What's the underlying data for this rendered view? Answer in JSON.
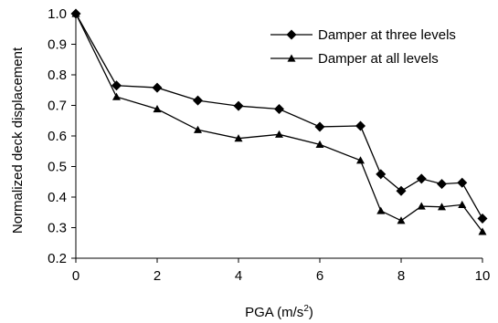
{
  "chart_data": {
    "type": "line",
    "xlabel": "PGA (m/s",
    "xlabel_sup": "2",
    "xlabel_suffix": ")",
    "ylabel": "Normalized deck displacement",
    "xlim": [
      0,
      10
    ],
    "ylim": [
      0.2,
      1.0
    ],
    "xticks": [
      "0",
      "2",
      "4",
      "6",
      "8",
      "10"
    ],
    "yticks": [
      "0.2",
      "0.3",
      "0.4",
      "0.5",
      "0.6",
      "0.7",
      "0.8",
      "0.9",
      "1.0"
    ],
    "grid": false,
    "legend_position": "top-right",
    "series": [
      {
        "name": "Damper at three levels",
        "marker": "diamond",
        "x": [
          0,
          1,
          2,
          3,
          4,
          5,
          6,
          7,
          7.5,
          8,
          8.5,
          9,
          9.5,
          10
        ],
        "values": [
          1.0,
          0.765,
          0.758,
          0.716,
          0.698,
          0.688,
          0.63,
          0.633,
          0.475,
          0.42,
          0.46,
          0.443,
          0.447,
          0.33
        ]
      },
      {
        "name": "Damper at all levels",
        "marker": "triangle",
        "x": [
          0,
          1,
          2,
          3,
          4,
          5,
          6,
          7,
          7.5,
          8,
          8.5,
          9,
          9.5,
          10
        ],
        "values": [
          1.0,
          0.728,
          0.688,
          0.62,
          0.592,
          0.605,
          0.572,
          0.52,
          0.355,
          0.323,
          0.37,
          0.368,
          0.375,
          0.287
        ]
      }
    ]
  }
}
